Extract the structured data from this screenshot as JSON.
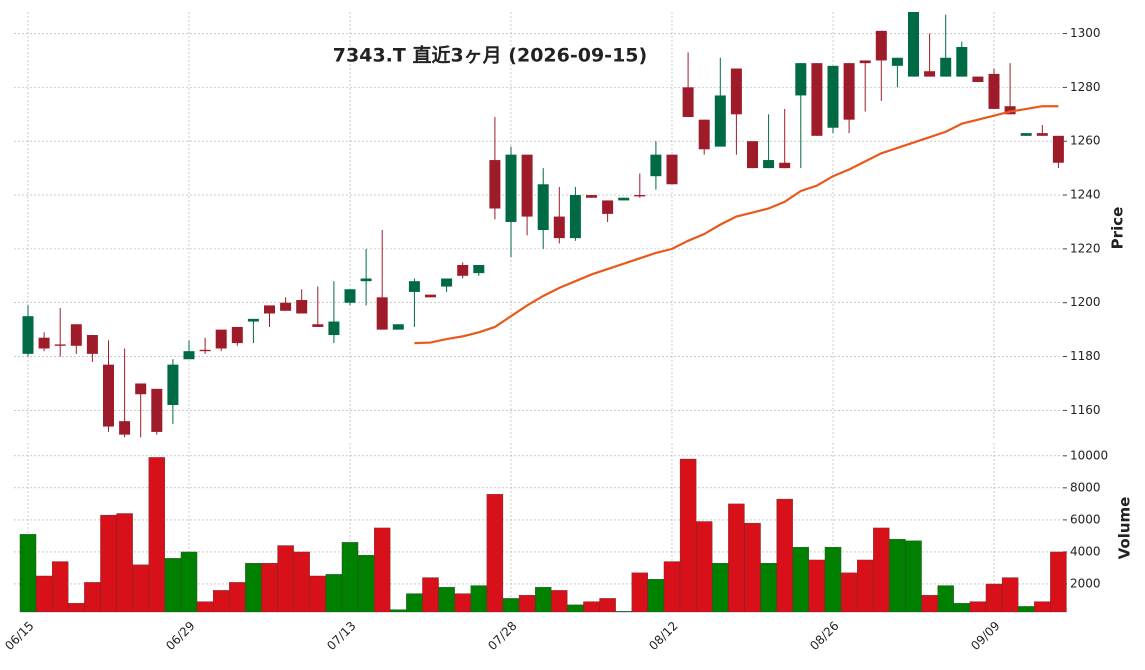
{
  "chart_data": {
    "type": "candlestick",
    "title": "7343.T  直近3ヶ月  (2026-09-15)",
    "categories": [
      "06/15",
      null,
      null,
      null,
      null,
      null,
      null,
      null,
      null,
      null,
      "06/29",
      null,
      null,
      null,
      null,
      null,
      null,
      null,
      null,
      null,
      "07/13",
      null,
      null,
      null,
      null,
      null,
      null,
      null,
      null,
      null,
      "07/28",
      null,
      null,
      null,
      null,
      null,
      null,
      null,
      null,
      null,
      "08/12",
      null,
      null,
      null,
      null,
      null,
      null,
      null,
      null,
      null,
      "08/26",
      null,
      null,
      null,
      null,
      null,
      null,
      null,
      null,
      null,
      "09/09",
      null,
      null,
      null,
      null
    ],
    "open": [
      1181,
      1187,
      1184.5,
      1192,
      1188,
      1177,
      1156,
      1170,
      1168,
      1162,
      1179,
      1182.5,
      1190,
      1191,
      1193,
      1199,
      1200,
      1201,
      1192,
      1188,
      1200,
      1208,
      1202,
      1190,
      1204,
      1203,
      1206,
      1214,
      1211,
      1253,
      1230,
      1255,
      1227,
      1232,
      1224,
      1240,
      1238,
      1238,
      1240,
      1247,
      1255,
      1280,
      1268,
      1258,
      1287,
      1260,
      1250,
      1252,
      1277,
      1289,
      1265,
      1289,
      1290,
      1301,
      1288,
      1284,
      1286,
      1284,
      1284,
      1284,
      1285,
      1273,
      1262,
      1263,
      1262
    ],
    "high": [
      1199,
      1189,
      1198,
      1192,
      1188,
      1186,
      1183,
      1170,
      1168,
      1179,
      1186,
      1187,
      1190,
      1191,
      1194,
      1199,
      1202,
      1205,
      1206,
      1208,
      1205,
      1220,
      1227,
      1192,
      1209,
      1203,
      1209,
      1215,
      1214,
      1269,
      1258,
      1255,
      1250,
      1243,
      1243,
      1240,
      1238,
      1239,
      1248,
      1260,
      1255,
      1293,
      1268,
      1291,
      1287,
      1260,
      1270,
      1272,
      1289,
      1289,
      1288,
      1289,
      1290,
      1301,
      1291,
      1308,
      1300,
      1307,
      1297,
      1284,
      1287,
      1289,
      1263,
      1266,
      1262
    ],
    "low": [
      1180,
      1182,
      1180,
      1181,
      1178,
      1152,
      1150,
      1150,
      1151,
      1155,
      1179,
      1181,
      1182,
      1184,
      1185,
      1191,
      1197,
      1196,
      1191,
      1185,
      1199,
      1199,
      1190,
      1190,
      1191,
      1202,
      1204,
      1209,
      1210,
      1231,
      1217,
      1225,
      1220,
      1222,
      1223,
      1239,
      1230,
      1238,
      1239,
      1242,
      1244,
      1269,
      1255,
      1258,
      1255,
      1250,
      1250,
      1250,
      1250,
      1262,
      1263,
      1263,
      1271,
      1275,
      1280,
      1284,
      1284,
      1284,
      1284,
      1282,
      1272,
      1270,
      1262,
      1262,
      1250
    ],
    "close": [
      1195,
      1183,
      1184,
      1184,
      1181,
      1154,
      1151,
      1166,
      1152,
      1177,
      1182,
      1182,
      1183,
      1185,
      1194,
      1196,
      1197,
      1196,
      1191,
      1193,
      1205,
      1209,
      1190,
      1192,
      1208,
      1202,
      1209,
      1210,
      1214,
      1235,
      1255,
      1232,
      1244,
      1224,
      1240,
      1239,
      1233,
      1239,
      1239.5,
      1255,
      1244,
      1269,
      1257,
      1277,
      1270,
      1250,
      1253,
      1250,
      1289,
      1262,
      1288,
      1268,
      1289,
      1290,
      1291,
      1308,
      1284,
      1291,
      1295,
      1282,
      1272,
      1270,
      1263,
      1262,
      1252
    ],
    "up_color": "#006a44",
    "down_color": "#9e1c2a",
    "ma": {
      "color": "#e85a1c",
      "values": [
        null,
        null,
        null,
        null,
        null,
        null,
        null,
        null,
        null,
        null,
        null,
        null,
        null,
        null,
        null,
        null,
        null,
        null,
        null,
        null,
        null,
        null,
        null,
        null,
        1185,
        1185.2,
        1186.5,
        1187.5,
        1189,
        1191,
        1195,
        1199,
        1202.5,
        1205.5,
        1208,
        1210.5,
        1212.5,
        1214.5,
        1216.5,
        1218.5,
        1220,
        1223,
        1225.5,
        1229,
        1232,
        1233.5,
        1235,
        1237.5,
        1241.5,
        1243.5,
        1247,
        1249.5,
        1252.5,
        1255.5,
        1257.5,
        1259.5,
        1261.5,
        1263.5,
        1266.5,
        1268,
        1269.5,
        1271,
        1272,
        1273,
        1273
      ]
    },
    "ylabel": "Price",
    "ylim": [
      1149,
      1308
    ],
    "yticks": [
      1160,
      1180,
      1200,
      1220,
      1240,
      1260,
      1280,
      1300
    ],
    "grid": true,
    "volume": {
      "ylabel": "Volume",
      "ylim": [
        250,
        10800
      ],
      "yticks": [
        2000,
        4000,
        6000,
        8000,
        10000
      ],
      "up_color": "#008000",
      "down_color": "#d7101a",
      "values": [
        5100,
        2500,
        3400,
        800,
        2100,
        6300,
        6400,
        3200,
        9900,
        3600,
        4000,
        900,
        1600,
        2100,
        3300,
        3300,
        4400,
        4000,
        2500,
        2600,
        4600,
        3800,
        5500,
        400,
        1400,
        2400,
        1800,
        1400,
        1900,
        7600,
        1100,
        1300,
        1800,
        1600,
        700,
        900,
        1100,
        300,
        2700,
        2300,
        3400,
        9800,
        5900,
        3300,
        7000,
        5800,
        3300,
        7300,
        4300,
        3500,
        4300,
        2700,
        3500,
        5500,
        4800,
        4700,
        1300,
        1900,
        800,
        900,
        2000,
        2400,
        600,
        900,
        4000
      ]
    }
  }
}
